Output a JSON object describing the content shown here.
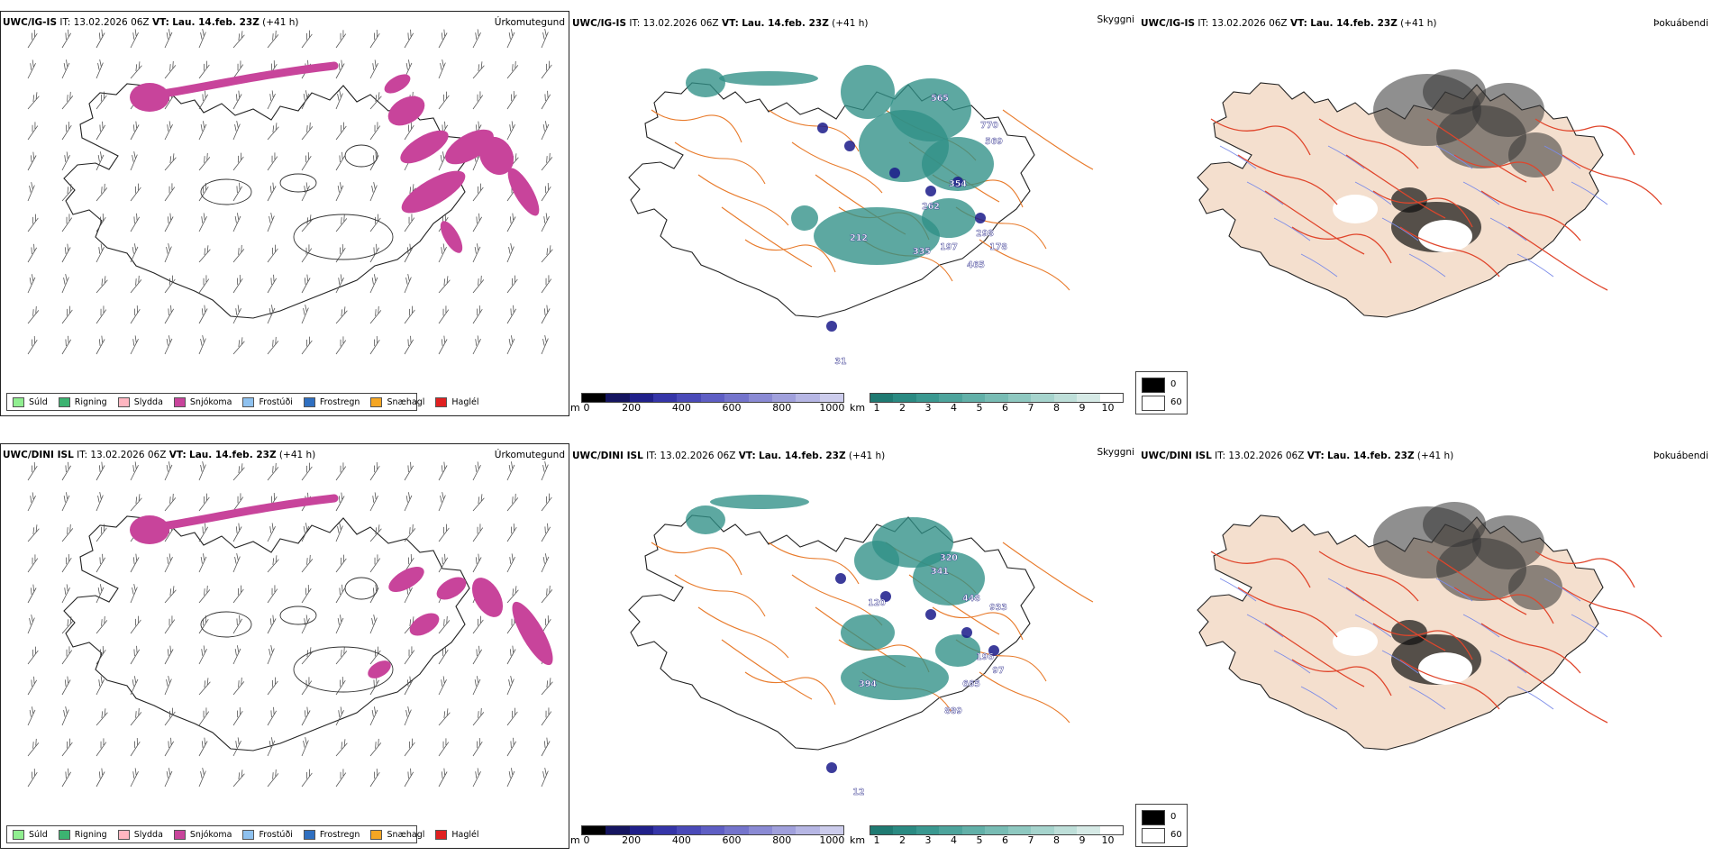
{
  "rows": [
    {
      "header_model": "UWC/IG-IS",
      "header_it_label": "IT:",
      "header_it": "13.02.2026 06Z",
      "header_vt_label": "VT:",
      "header_vt": "Lau. 14.feb. 23Z",
      "header_lead": "(+41 h)",
      "panel_titles": [
        "Úrkomutegund",
        "Skyggni",
        "Þokuábendi"
      ],
      "cloud_labels": [
        "565",
        "770",
        "569",
        "354",
        "262",
        "298",
        "178",
        "465",
        "197",
        "212",
        "335",
        "31"
      ]
    },
    {
      "header_model": "UWC/DINI ISL",
      "header_it_label": "IT:",
      "header_it": "13.02.2026 06Z",
      "header_vt_label": "VT:",
      "header_vt": "Lau. 14.feb. 23Z",
      "header_lead": "(+41 h)",
      "panel_titles": [
        "Úrkomutegund",
        "Skyggni",
        "Þokuábendi"
      ],
      "cloud_labels": [
        "320",
        "341",
        "448",
        "933",
        "120",
        "196",
        "97",
        "665",
        "889",
        "394",
        "12"
      ]
    }
  ],
  "precip_legend": [
    {
      "label": "Súld",
      "color": "#90ee90"
    },
    {
      "label": "Rigning",
      "color": "#3cb371"
    },
    {
      "label": "Slydda",
      "color": "#ffb6c1"
    },
    {
      "label": "Snjókoma",
      "color": "#c8449b"
    },
    {
      "label": "Frostúði",
      "color": "#8ec1ef"
    },
    {
      "label": "Frostregn",
      "color": "#2f6fc0"
    },
    {
      "label": "Snæhagl",
      "color": "#f5a623"
    },
    {
      "label": "Haglél",
      "color": "#e02020"
    }
  ],
  "ceiling_scale": {
    "unit": "m",
    "ticks": [
      "0",
      "200",
      "400",
      "600",
      "800",
      "1000"
    ]
  },
  "visibility_scale": {
    "unit": "km",
    "ticks": [
      "1",
      "2",
      "3",
      "4",
      "5",
      "6",
      "7",
      "8",
      "9",
      "10"
    ]
  },
  "fog_box": {
    "labels": [
      "0",
      "60"
    ]
  },
  "colors": {
    "snow": "#c8449b",
    "teal": "#2f8f86",
    "coast": "#222222",
    "road": "#e87a2a",
    "land": "#f4dfce",
    "fog_road": "#e0452b",
    "river": "#7b8be8"
  }
}
